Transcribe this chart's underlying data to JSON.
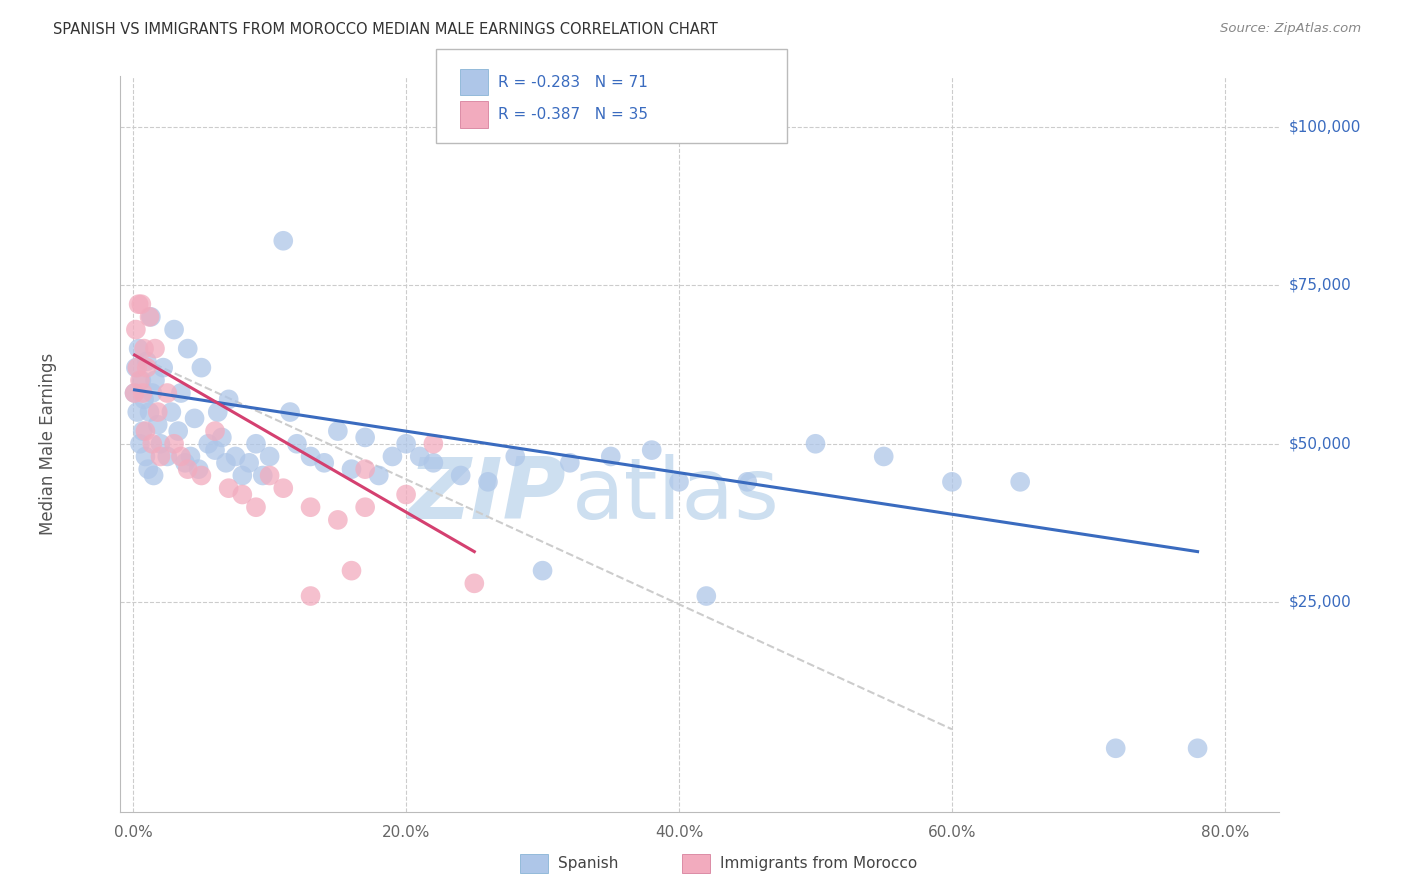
{
  "title": "SPANISH VS IMMIGRANTS FROM MOROCCO MEDIAN MALE EARNINGS CORRELATION CHART",
  "source": "Source: ZipAtlas.com",
  "xlabel_ticks": [
    "0.0%",
    "20.0%",
    "40.0%",
    "60.0%",
    "80.0%"
  ],
  "xlabel_tick_vals": [
    0.0,
    0.2,
    0.4,
    0.6,
    0.8
  ],
  "ylabel": "Median Male Earnings",
  "ylabel_ticks": [
    "$25,000",
    "$50,000",
    "$75,000",
    "$100,000"
  ],
  "ylabel_tick_vals": [
    25000,
    50000,
    75000,
    100000
  ],
  "xlim": [
    -0.01,
    0.84
  ],
  "ylim": [
    -8000,
    108000
  ],
  "legend_labels": [
    "Spanish",
    "Immigrants from Morocco"
  ],
  "R_spanish": -0.283,
  "N_spanish": 71,
  "R_morocco": -0.387,
  "N_morocco": 35,
  "color_spanish": "#aec6e8",
  "color_morocco": "#f2abbe",
  "color_line_spanish": "#3a6bbf",
  "color_line_morocco": "#d44070",
  "color_right_labels": "#3a6bbf",
  "watermark_zip": "ZIP",
  "watermark_atlas": "atlas",
  "watermark_color": "#cddff0",
  "spanish_x": [
    0.001,
    0.002,
    0.003,
    0.004,
    0.005,
    0.006,
    0.007,
    0.008,
    0.009,
    0.01,
    0.011,
    0.012,
    0.013,
    0.014,
    0.015,
    0.016,
    0.018,
    0.02,
    0.022,
    0.025,
    0.028,
    0.03,
    0.033,
    0.035,
    0.038,
    0.04,
    0.042,
    0.045,
    0.048,
    0.05,
    0.055,
    0.06,
    0.062,
    0.065,
    0.068,
    0.07,
    0.075,
    0.08,
    0.085,
    0.09,
    0.095,
    0.1,
    0.11,
    0.115,
    0.12,
    0.13,
    0.14,
    0.15,
    0.16,
    0.17,
    0.18,
    0.19,
    0.2,
    0.21,
    0.22,
    0.24,
    0.26,
    0.28,
    0.3,
    0.32,
    0.35,
    0.38,
    0.4,
    0.42,
    0.45,
    0.5,
    0.55,
    0.6,
    0.65,
    0.72,
    0.78
  ],
  "spanish_y": [
    58000,
    62000,
    55000,
    65000,
    50000,
    60000,
    52000,
    57000,
    48000,
    63000,
    46000,
    55000,
    70000,
    58000,
    45000,
    60000,
    53000,
    50000,
    62000,
    48000,
    55000,
    68000,
    52000,
    58000,
    47000,
    65000,
    48000,
    54000,
    46000,
    62000,
    50000,
    49000,
    55000,
    51000,
    47000,
    57000,
    48000,
    45000,
    47000,
    50000,
    45000,
    48000,
    82000,
    55000,
    50000,
    48000,
    47000,
    52000,
    46000,
    51000,
    45000,
    48000,
    50000,
    48000,
    47000,
    45000,
    44000,
    48000,
    30000,
    47000,
    48000,
    49000,
    44000,
    26000,
    44000,
    50000,
    48000,
    44000,
    44000,
    2000,
    2000
  ],
  "morocco_x": [
    0.001,
    0.002,
    0.003,
    0.004,
    0.005,
    0.006,
    0.007,
    0.008,
    0.009,
    0.01,
    0.012,
    0.014,
    0.016,
    0.018,
    0.02,
    0.025,
    0.03,
    0.035,
    0.04,
    0.05,
    0.06,
    0.07,
    0.08,
    0.09,
    0.1,
    0.11,
    0.13,
    0.15,
    0.17,
    0.2,
    0.22,
    0.25,
    0.16,
    0.13,
    0.17
  ],
  "morocco_y": [
    58000,
    68000,
    62000,
    72000,
    60000,
    72000,
    58000,
    65000,
    52000,
    62000,
    70000,
    50000,
    65000,
    55000,
    48000,
    58000,
    50000,
    48000,
    46000,
    45000,
    52000,
    43000,
    42000,
    40000,
    45000,
    43000,
    40000,
    38000,
    46000,
    42000,
    50000,
    28000,
    30000,
    26000,
    40000
  ],
  "sp_line_x": [
    0.001,
    0.78
  ],
  "sp_line_y": [
    58500,
    33000
  ],
  "mo_line_x": [
    0.001,
    0.25
  ],
  "mo_line_y": [
    64000,
    33000
  ],
  "dash_line_x": [
    0.001,
    0.6
  ],
  "dash_line_y": [
    64000,
    5000
  ]
}
